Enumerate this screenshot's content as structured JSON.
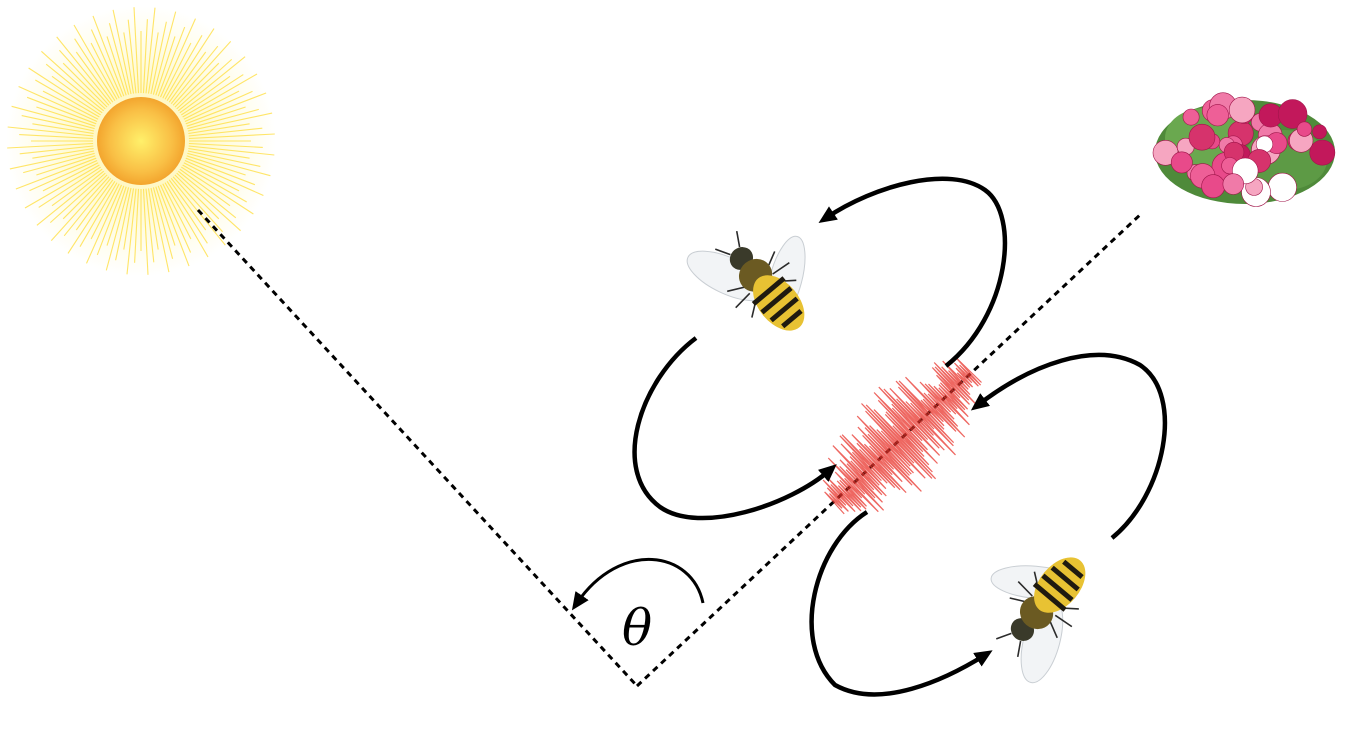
{
  "diagram": {
    "angle_label": "θ",
    "icons": {
      "sun": "sun-icon",
      "flowers": "flower-bouquet-icon",
      "bee": "honeybee-icon"
    },
    "colors": {
      "background": "#ffffff",
      "sun_core": "#f8b53a",
      "sun_rays": "#ffe14d",
      "waggle_signal": "#e8342c",
      "line": "#000000"
    }
  }
}
